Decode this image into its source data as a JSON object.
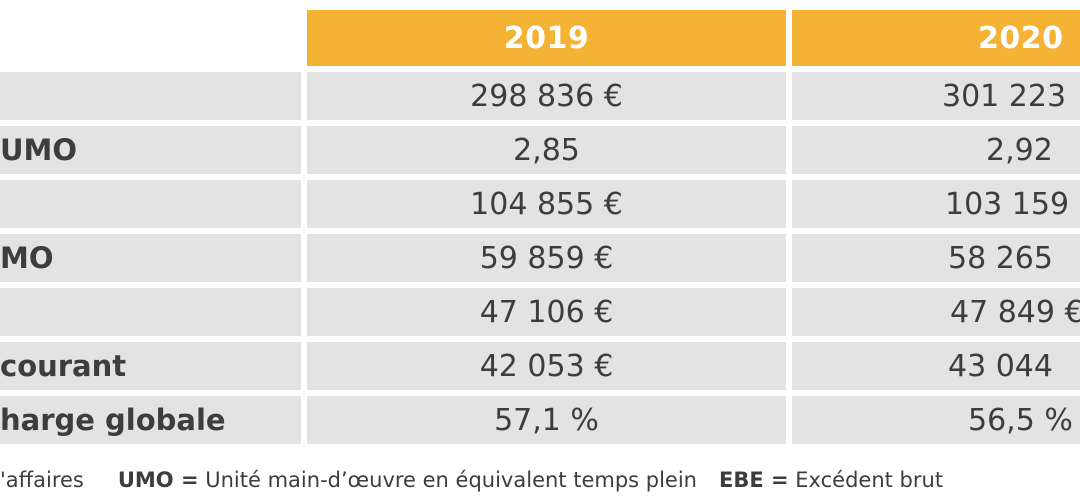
{
  "table": {
    "years": [
      "2019",
      "2020"
    ],
    "rows": [
      {
        "label": "",
        "v2019": "298 836 €",
        "v2020": "301 223"
      },
      {
        "label": "UMO",
        "v2019": "2,85",
        "v2020": "2,92"
      },
      {
        "label": "",
        "v2019": "104 855 €",
        "v2020": "103 159"
      },
      {
        "label": "MO",
        "v2019": "59 859 €",
        "v2020": "58 265"
      },
      {
        "label": "",
        "v2019": "47 106 €",
        "v2020": "47 849 €"
      },
      {
        "label": "courant",
        "v2019": "42 053 €",
        "v2020": "43 044"
      },
      {
        "label": "harge globale",
        "v2019": "57,1 %",
        "v2020": "56,5 %"
      }
    ]
  },
  "legend": {
    "item1_text": "'affaires",
    "item2_key": "UMO =",
    "item2_text": " Unité main-d’œuvre en équivalent temps plein",
    "item3_key": "EBE =",
    "item3_text": " Excédent brut"
  },
  "colors": {
    "header_bg": "#f5b335",
    "row_bg": "#e3e3e3",
    "text": "#3d3d3d"
  }
}
